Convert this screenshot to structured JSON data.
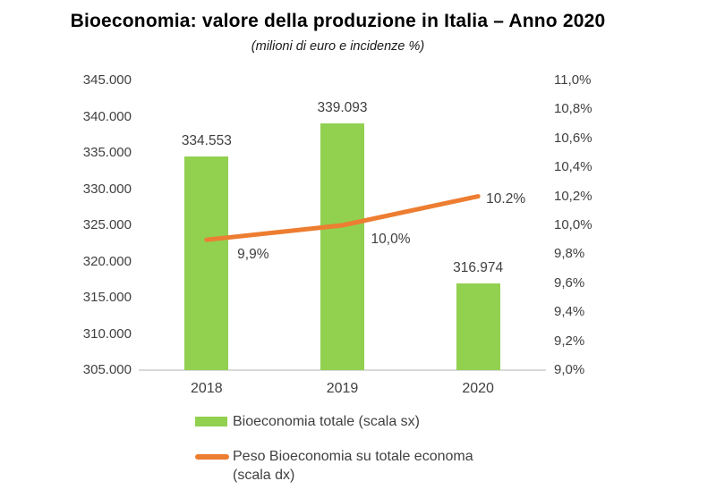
{
  "title": "Bioeconomia: valore della produzione in Italia – Anno 2020",
  "subtitle": "(milioni di euro e incidenze %)",
  "chart_data": {
    "type": "bar+line combo",
    "categories": [
      "2018",
      "2019",
      "2020"
    ],
    "series": [
      {
        "name": "Bioeconomia totale (scala sx)",
        "type": "bar",
        "axis": "left",
        "color": "#92D050",
        "values": [
          334553,
          339093,
          316974
        ],
        "labels": [
          "334.553",
          "339.093",
          "316.974"
        ]
      },
      {
        "name": "Peso Bioeconomia su totale economa (scala dx)",
        "type": "line",
        "axis": "right",
        "color": "#ED7D31",
        "values": [
          9.9,
          10.0,
          10.2
        ],
        "labels": [
          "9,9%",
          "10,0%",
          "10.2%"
        ]
      }
    ],
    "left_axis": {
      "min": 305000,
      "max": 345000,
      "tick_step": 5000,
      "ticks": [
        "345.000",
        "340.000",
        "335.000",
        "330.000",
        "325.000",
        "320.000",
        "315.000",
        "310.000",
        "305.000"
      ]
    },
    "right_axis": {
      "min": 9.0,
      "max": 11.0,
      "tick_step": 0.2,
      "ticks": [
        "11,0%",
        "10,8%",
        "10,6%",
        "10,4%",
        "10,2%",
        "10,0%",
        "9,8%",
        "9,6%",
        "9,4%",
        "9,2%",
        "9,0%"
      ]
    },
    "grid": false,
    "legend_position": "bottom-left",
    "axis_line_color": "#D9D9D9"
  },
  "legend": {
    "items": [
      {
        "swatch": "bar",
        "color": "#92D050",
        "label": "Bioeconomia totale (scala sx)",
        "label_line2": ""
      },
      {
        "swatch": "line",
        "color": "#ED7D31",
        "label": "Peso Bioeconomia su totale economa",
        "label_line2": "(scala dx)"
      }
    ]
  },
  "colors": {
    "bar_green": "#92D050",
    "line_orange": "#ED7D31",
    "axis_line": "#D9D9D9",
    "text": "#404040",
    "title": "#000000"
  }
}
